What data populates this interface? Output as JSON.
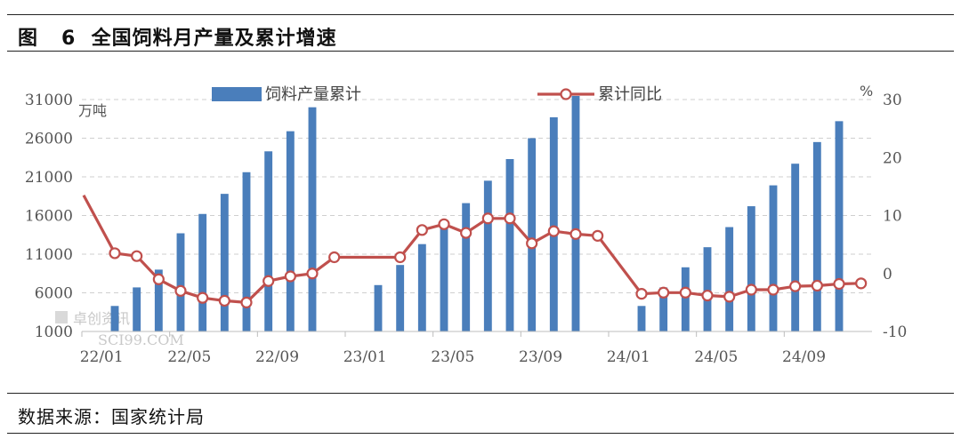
{
  "figure": {
    "title": "图   6  全国饲料月产量及累计增速",
    "source": "数据来源：国家统计局"
  },
  "watermark": {
    "text_cn": "卓创资讯",
    "text_en": "SCI99.COM"
  },
  "chart_data": {
    "type": "bar+line",
    "months": [
      "22/01",
      "22/02",
      "22/03",
      "22/04",
      "22/05",
      "22/06",
      "22/07",
      "22/08",
      "22/09",
      "22/10",
      "22/11",
      "22/12",
      "23/01",
      "23/02",
      "23/03",
      "23/04",
      "23/05",
      "23/06",
      "23/07",
      "23/08",
      "23/09",
      "23/10",
      "23/11",
      "23/12",
      "24/01",
      "24/02",
      "24/03",
      "24/04",
      "24/05",
      "24/06",
      "24/07",
      "24/08",
      "24/09",
      "24/10",
      "24/11",
      "24/12"
    ],
    "x_tick_labels": [
      "22/01",
      "22/05",
      "22/09",
      "23/01",
      "23/05",
      "23/09",
      "24/01",
      "24/05",
      "24/09"
    ],
    "left_axis": {
      "unit": "万吨",
      "range": [
        1000,
        31000
      ],
      "ticks": [
        "1000",
        "6000",
        "11000",
        "16000",
        "21000",
        "26000",
        "31000"
      ]
    },
    "right_axis": {
      "unit": "%",
      "range": [
        -10,
        30
      ],
      "ticks": [
        "-10",
        "0",
        "10",
        "20",
        "30"
      ]
    },
    "legend": [
      {
        "name": "饲料产量累计",
        "color": "#4a7ebb"
      },
      {
        "name": "累计同比",
        "color": "#c0504d"
      }
    ],
    "series": [
      {
        "name": "饲料产量累计",
        "axis": "left",
        "color": "#4a7ebb",
        "values": [
          null,
          4300,
          6700,
          9000,
          13700,
          16200,
          18800,
          21600,
          24300,
          26900,
          30000,
          null,
          null,
          7000,
          9600,
          12300,
          14800,
          17600,
          20500,
          23300,
          26000,
          28700,
          31500,
          null,
          null,
          4300,
          6700,
          9300,
          11900,
          14500,
          17200,
          19900,
          22700,
          25500,
          28200,
          null
        ]
      },
      {
        "name": "累计同比",
        "axis": "right",
        "color": "#c0504d",
        "values": [
          13.5,
          3.5,
          3.0,
          -1.0,
          -3.0,
          -4.2,
          -4.7,
          -5.0,
          -1.3,
          -0.5,
          0,
          2.8,
          null,
          null,
          2.8,
          7.5,
          8.5,
          7.0,
          9.5,
          9.5,
          5.2,
          7.3,
          6.8,
          6.5,
          null,
          -3.5,
          -3.3,
          -3.3,
          -3.8,
          -4.0,
          -2.8,
          -2.8,
          -2.2,
          -2.1,
          -1.8,
          -1.7
        ]
      }
    ]
  }
}
